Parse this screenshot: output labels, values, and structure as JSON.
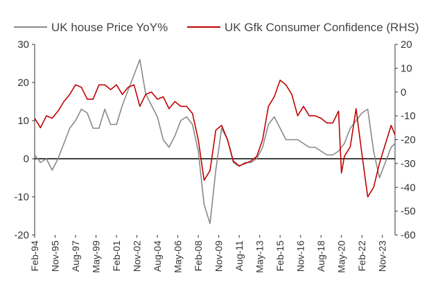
{
  "chart_data": {
    "type": "line",
    "legend": {
      "position": "top"
    },
    "grid": false,
    "x_tick_labels": [
      "Feb-94",
      "Nov-95",
      "Aug-97",
      "May-99",
      "Feb-01",
      "Nov-02",
      "Aug-04",
      "May-06",
      "Feb-08",
      "Nov-09",
      "Aug-11",
      "May-13",
      "Feb-15",
      "Nov-16",
      "Aug-18",
      "May-20",
      "Feb-22",
      "Nov-23"
    ],
    "x_range": [
      "Feb-94",
      "Dec-24"
    ],
    "y_left": {
      "ticks": [
        "30",
        "20",
        "10",
        "0",
        "-10",
        "-20"
      ],
      "range": [
        -20,
        30
      ]
    },
    "y_right": {
      "ticks": [
        "20",
        "10",
        "0",
        "-10",
        "-20",
        "-30",
        "-40",
        "-50",
        "-60"
      ],
      "range": [
        -60,
        20
      ]
    },
    "colors": {
      "house_price": "#888888",
      "confidence": "#c00000",
      "zero_line": "#000000"
    },
    "series": [
      {
        "name": "UK house Price YoY%",
        "axis": "left",
        "points": [
          [
            "1994-02",
            1
          ],
          [
            "1994-08",
            -1
          ],
          [
            "1995-02",
            0
          ],
          [
            "1995-08",
            -3
          ],
          [
            "1996-02",
            0
          ],
          [
            "1996-08",
            4
          ],
          [
            "1997-02",
            8
          ],
          [
            "1997-08",
            10
          ],
          [
            "1998-02",
            13
          ],
          [
            "1998-08",
            12
          ],
          [
            "1999-02",
            8
          ],
          [
            "1999-08",
            8
          ],
          [
            "2000-02",
            13
          ],
          [
            "2000-08",
            9
          ],
          [
            "2001-02",
            9
          ],
          [
            "2001-08",
            14
          ],
          [
            "2002-02",
            18
          ],
          [
            "2002-08",
            22
          ],
          [
            "2003-02",
            26
          ],
          [
            "2003-08",
            17
          ],
          [
            "2004-02",
            14
          ],
          [
            "2004-08",
            11
          ],
          [
            "2005-02",
            5
          ],
          [
            "2005-08",
            3
          ],
          [
            "2006-02",
            6
          ],
          [
            "2006-08",
            10
          ],
          [
            "2007-02",
            11
          ],
          [
            "2007-08",
            9
          ],
          [
            "2008-02",
            2
          ],
          [
            "2008-08",
            -12
          ],
          [
            "2009-02",
            -17
          ],
          [
            "2009-08",
            -3
          ],
          [
            "2010-02",
            8
          ],
          [
            "2010-08",
            5
          ],
          [
            "2011-02",
            -1
          ],
          [
            "2011-08",
            -2
          ],
          [
            "2012-02",
            -1
          ],
          [
            "2012-08",
            -1
          ],
          [
            "2013-02",
            0
          ],
          [
            "2013-08",
            3
          ],
          [
            "2014-02",
            9
          ],
          [
            "2014-08",
            11
          ],
          [
            "2015-02",
            8
          ],
          [
            "2015-08",
            5
          ],
          [
            "2016-02",
            5
          ],
          [
            "2016-08",
            5
          ],
          [
            "2017-02",
            4
          ],
          [
            "2017-08",
            3
          ],
          [
            "2018-02",
            3
          ],
          [
            "2018-08",
            2
          ],
          [
            "2019-02",
            1
          ],
          [
            "2019-08",
            1
          ],
          [
            "2020-02",
            2
          ],
          [
            "2020-08",
            4
          ],
          [
            "2021-02",
            8
          ],
          [
            "2021-08",
            10
          ],
          [
            "2022-02",
            12
          ],
          [
            "2022-08",
            13
          ],
          [
            "2023-02",
            2
          ],
          [
            "2023-08",
            -5
          ],
          [
            "2024-02",
            -1
          ],
          [
            "2024-08",
            3
          ],
          [
            "2024-12",
            4
          ]
        ]
      },
      {
        "name": "UK Gfk Consumer Confidence (RHS)",
        "axis": "right",
        "points": [
          [
            "1994-02",
            -11
          ],
          [
            "1994-08",
            -15
          ],
          [
            "1995-02",
            -10
          ],
          [
            "1995-08",
            -11
          ],
          [
            "1996-02",
            -8
          ],
          [
            "1996-08",
            -4
          ],
          [
            "1997-02",
            -1
          ],
          [
            "1997-08",
            3
          ],
          [
            "1998-02",
            2
          ],
          [
            "1998-08",
            -3
          ],
          [
            "1999-02",
            -3
          ],
          [
            "1999-08",
            3
          ],
          [
            "2000-02",
            3
          ],
          [
            "2000-08",
            1
          ],
          [
            "2001-02",
            3
          ],
          [
            "2001-08",
            -1
          ],
          [
            "2002-02",
            2
          ],
          [
            "2002-08",
            3
          ],
          [
            "2003-02",
            -6
          ],
          [
            "2003-08",
            -1
          ],
          [
            "2004-02",
            0
          ],
          [
            "2004-08",
            -3
          ],
          [
            "2005-02",
            -2
          ],
          [
            "2005-08",
            -7
          ],
          [
            "2006-02",
            -4
          ],
          [
            "2006-08",
            -6
          ],
          [
            "2007-02",
            -6
          ],
          [
            "2007-08",
            -9
          ],
          [
            "2008-02",
            -20
          ],
          [
            "2008-08",
            -37
          ],
          [
            "2009-02",
            -33
          ],
          [
            "2009-08",
            -16
          ],
          [
            "2010-02",
            -14
          ],
          [
            "2010-08",
            -20
          ],
          [
            "2011-02",
            -29
          ],
          [
            "2011-08",
            -31
          ],
          [
            "2012-02",
            -30
          ],
          [
            "2012-08",
            -29
          ],
          [
            "2013-02",
            -27
          ],
          [
            "2013-08",
            -20
          ],
          [
            "2014-02",
            -6
          ],
          [
            "2014-08",
            -2
          ],
          [
            "2015-02",
            5
          ],
          [
            "2015-08",
            3
          ],
          [
            "2016-02",
            -1
          ],
          [
            "2016-08",
            -10
          ],
          [
            "2017-02",
            -6
          ],
          [
            "2017-08",
            -10
          ],
          [
            "2018-02",
            -10
          ],
          [
            "2018-08",
            -11
          ],
          [
            "2019-02",
            -13
          ],
          [
            "2019-08",
            -13
          ],
          [
            "2020-02",
            -8
          ],
          [
            "2020-05",
            -34
          ],
          [
            "2020-08",
            -27
          ],
          [
            "2021-02",
            -23
          ],
          [
            "2021-08",
            -7
          ],
          [
            "2022-02",
            -26
          ],
          [
            "2022-08",
            -44
          ],
          [
            "2023-02",
            -40
          ],
          [
            "2023-08",
            -30
          ],
          [
            "2024-02",
            -22
          ],
          [
            "2024-08",
            -14
          ],
          [
            "2024-12",
            -18
          ]
        ]
      }
    ]
  }
}
